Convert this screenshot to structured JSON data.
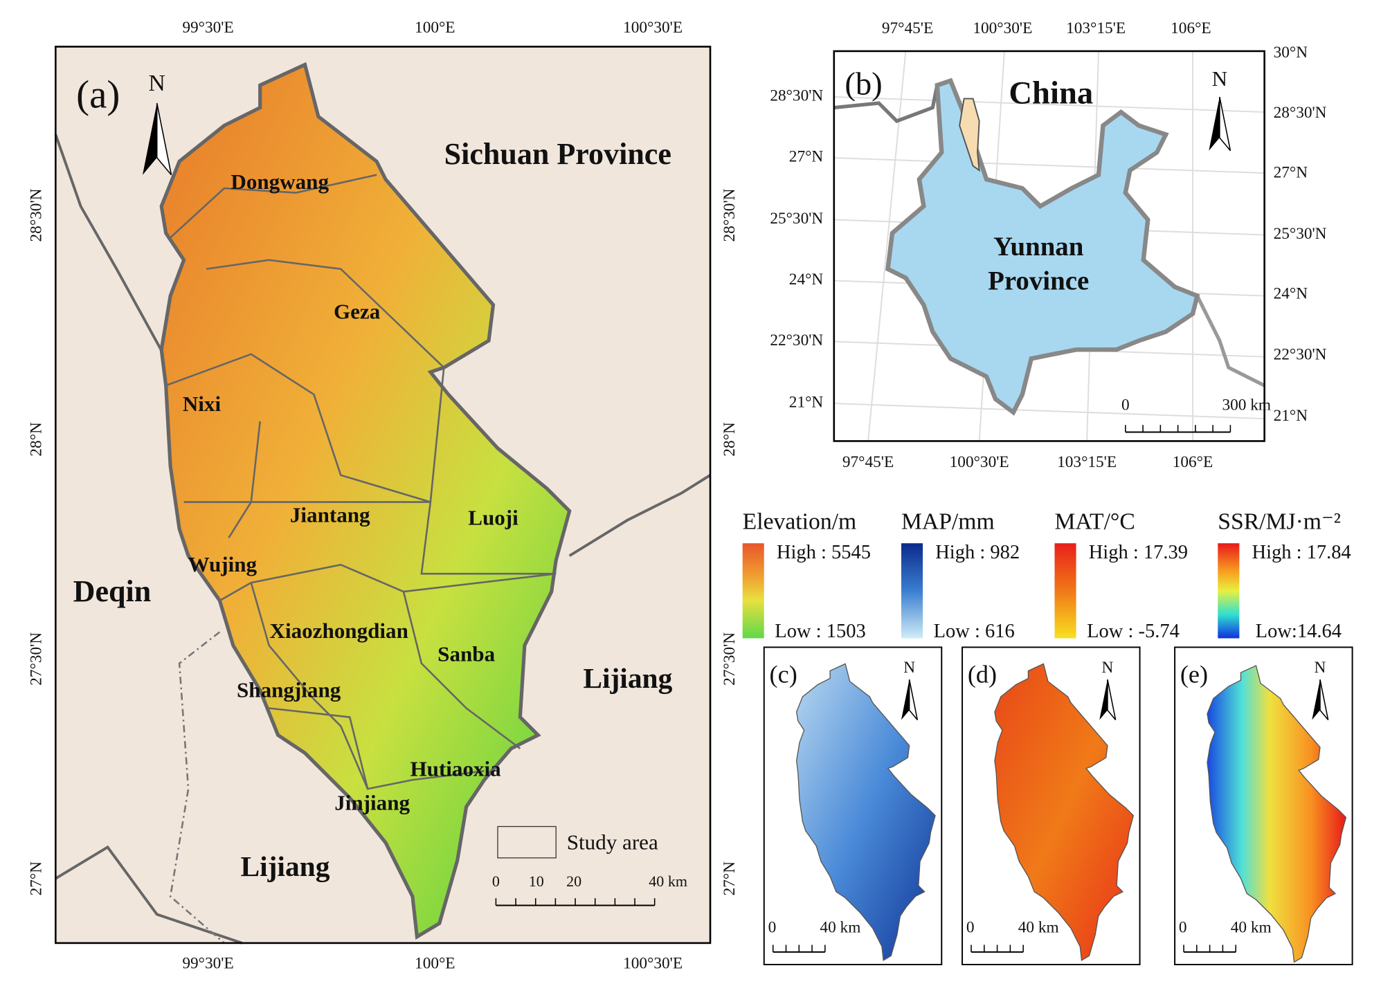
{
  "panel_a": {
    "label": "(a)",
    "north": "N",
    "top_lon_labels": [
      "99°30'E",
      "100°E",
      "100°30'E"
    ],
    "bottom_lon_labels": [
      "99°30'E",
      "100°E",
      "100°30'E"
    ],
    "left_lat_labels": [
      "28°30'N",
      "28°N",
      "27°30'N",
      "27°N"
    ],
    "right_lat_labels": [
      "28°30'N",
      "28°N",
      "27°30'N",
      "27°N"
    ],
    "regions": [
      "Sichuan Province",
      "Deqin",
      "Lijiang",
      "Lijiang"
    ],
    "townships": [
      "Dongwang",
      "Geza",
      "Nixi",
      "Jiantang",
      "Luoji",
      "Wujing",
      "Xiaozhongdian",
      "Sanba",
      "Shangjiang",
      "Hutiaoxia",
      "Jinjiang"
    ],
    "legend": "Study area",
    "scale_bar": [
      "0",
      "10",
      "20",
      "40 km"
    ]
  },
  "panel_b": {
    "label": "(b)",
    "north": "N",
    "country": "China",
    "province": "Yunnan Province",
    "top_lon_labels": [
      "97°45'E",
      "100°30'E",
      "103°15'E",
      "106°E"
    ],
    "bottom_lon_labels": [
      "97°45'E",
      "100°30'E",
      "103°15'E",
      "106°E"
    ],
    "left_lat_labels": [
      "28°30'N",
      "27°N",
      "25°30'N",
      "24°N",
      "22°30'N",
      "21°N"
    ],
    "right_lat_labels": [
      "30°N",
      "28°30'N",
      "27°N",
      "25°30'N",
      "24°N",
      "22°30'N",
      "21°N"
    ],
    "scale_bar": [
      "0",
      "300 km"
    ]
  },
  "legends": [
    {
      "title": "Elevation/m",
      "high": "High : 5545",
      "low": "Low : 1503"
    },
    {
      "title": "MAP/mm",
      "high": "High : 982",
      "low": "Low : 616"
    },
    {
      "title": "MAT/°C",
      "high": "High : 17.39",
      "low": "Low : -5.74"
    },
    {
      "title": "SSR/MJ·m⁻²",
      "high": "High : 17.84",
      "low": "Low:14.64"
    }
  ],
  "small_panels": [
    {
      "label": "(c)",
      "north": "N",
      "scale_bar": [
        "0",
        "40 km"
      ]
    },
    {
      "label": "(d)",
      "north": "N",
      "scale_bar": [
        "0",
        "40 km"
      ]
    },
    {
      "label": "(e)",
      "north": "N",
      "scale_bar": [
        "0",
        "40 km"
      ]
    }
  ]
}
